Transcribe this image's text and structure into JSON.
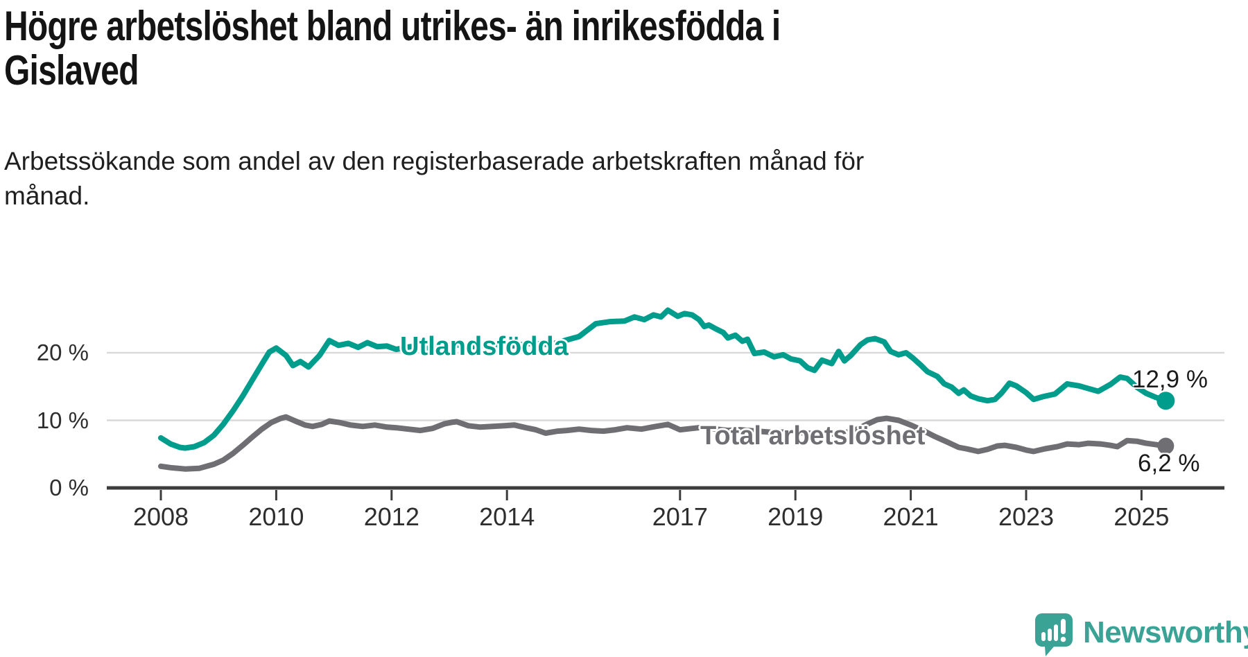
{
  "title": "Högre arbetslöshet bland utrikes- än inrikesfödda i\nGislaved",
  "subtitle": "Arbetssökande som andel av den registerbaserade arbetskraften månad för\nmånad.",
  "footer": {
    "brand": "Newsworthy",
    "logo_icon": "newsworthy-speech-bubble-bar-chart-icon"
  },
  "colors": {
    "series_foreign_born": "#009c8c",
    "series_total": "#6e6e73",
    "gridline": "#d9d9d9",
    "axis": "#3c3c3c",
    "tick_text": "#2e2e2e",
    "heading_text": "#141414",
    "value_label_text": "#1a1a1a",
    "logo_teal": "#3aa396"
  },
  "chart_data": {
    "type": "line",
    "title": "Högre arbetslöshet bland utrikes- än inrikesfödda i Gislaved",
    "subtitle": "Arbetssökande som andel av den registerbaserade arbetskraften månad för månad.",
    "x_axis": {
      "unit": "year",
      "ticks": [
        2008,
        2010,
        2012,
        2014,
        2017,
        2019,
        2021,
        2023,
        2025
      ],
      "range": [
        2008,
        2025.9
      ]
    },
    "y_axis": {
      "unit": "%",
      "ticks": [
        0,
        10,
        20
      ],
      "tick_labels": [
        "0 %",
        "10 %",
        "20 %"
      ],
      "gridlines": [
        10,
        20
      ],
      "range": [
        0,
        33
      ]
    },
    "legend_position": "inline-on-line",
    "grid": "horizontal-only",
    "series": [
      {
        "id": "utlandsfodda",
        "name": "Utlandsfödda",
        "color": "#009c8c",
        "end_value": 12.9,
        "end_label": "12,9 %",
        "points": [
          [
            2008.0,
            7.4
          ],
          [
            2008.17,
            6.5
          ],
          [
            2008.33,
            6.0
          ],
          [
            2008.42,
            5.9
          ],
          [
            2008.58,
            6.1
          ],
          [
            2008.75,
            6.7
          ],
          [
            2008.92,
            7.8
          ],
          [
            2009.08,
            9.4
          ],
          [
            2009.25,
            11.4
          ],
          [
            2009.42,
            13.6
          ],
          [
            2009.58,
            15.9
          ],
          [
            2009.75,
            18.3
          ],
          [
            2009.88,
            20.1
          ],
          [
            2010.0,
            20.7
          ],
          [
            2010.17,
            19.6
          ],
          [
            2010.29,
            18.1
          ],
          [
            2010.42,
            18.7
          ],
          [
            2010.56,
            17.9
          ],
          [
            2010.75,
            19.6
          ],
          [
            2010.92,
            21.8
          ],
          [
            2011.08,
            21.1
          ],
          [
            2011.25,
            21.4
          ],
          [
            2011.42,
            20.8
          ],
          [
            2011.58,
            21.5
          ],
          [
            2011.75,
            20.9
          ],
          [
            2011.92,
            21.0
          ],
          [
            2012.08,
            20.5
          ],
          [
            2012.33,
            20.9
          ],
          [
            2012.58,
            20.6
          ],
          [
            2012.83,
            20.8
          ],
          [
            2013.08,
            21.2
          ],
          [
            2013.42,
            20.9
          ],
          [
            2013.75,
            21.3
          ],
          [
            2014.08,
            21.0
          ],
          [
            2014.42,
            21.4
          ],
          [
            2014.75,
            21.2
          ],
          [
            2015.0,
            21.8
          ],
          [
            2015.25,
            22.4
          ],
          [
            2015.54,
            24.3
          ],
          [
            2015.79,
            24.6
          ],
          [
            2016.04,
            24.7
          ],
          [
            2016.21,
            25.3
          ],
          [
            2016.38,
            24.9
          ],
          [
            2016.54,
            25.6
          ],
          [
            2016.67,
            25.3
          ],
          [
            2016.79,
            26.3
          ],
          [
            2016.96,
            25.4
          ],
          [
            2017.08,
            25.8
          ],
          [
            2017.21,
            25.6
          ],
          [
            2017.33,
            24.9
          ],
          [
            2017.42,
            23.9
          ],
          [
            2017.5,
            24.1
          ],
          [
            2017.63,
            23.5
          ],
          [
            2017.75,
            23.0
          ],
          [
            2017.83,
            22.2
          ],
          [
            2017.96,
            22.6
          ],
          [
            2018.08,
            21.7
          ],
          [
            2018.17,
            22.0
          ],
          [
            2018.29,
            19.9
          ],
          [
            2018.46,
            20.1
          ],
          [
            2018.63,
            19.4
          ],
          [
            2018.79,
            19.7
          ],
          [
            2018.92,
            19.1
          ],
          [
            2019.08,
            18.8
          ],
          [
            2019.21,
            17.8
          ],
          [
            2019.33,
            17.4
          ],
          [
            2019.46,
            18.9
          ],
          [
            2019.63,
            18.4
          ],
          [
            2019.75,
            20.2
          ],
          [
            2019.85,
            18.8
          ],
          [
            2019.96,
            19.6
          ],
          [
            2020.13,
            21.2
          ],
          [
            2020.25,
            21.9
          ],
          [
            2020.38,
            22.1
          ],
          [
            2020.54,
            21.6
          ],
          [
            2020.65,
            20.2
          ],
          [
            2020.79,
            19.7
          ],
          [
            2020.92,
            20.0
          ],
          [
            2021.04,
            19.2
          ],
          [
            2021.17,
            18.2
          ],
          [
            2021.29,
            17.2
          ],
          [
            2021.46,
            16.5
          ],
          [
            2021.58,
            15.4
          ],
          [
            2021.71,
            14.9
          ],
          [
            2021.83,
            14.0
          ],
          [
            2021.92,
            14.5
          ],
          [
            2022.04,
            13.6
          ],
          [
            2022.17,
            13.2
          ],
          [
            2022.33,
            12.9
          ],
          [
            2022.46,
            13.1
          ],
          [
            2022.58,
            14.1
          ],
          [
            2022.71,
            15.5
          ],
          [
            2022.83,
            15.1
          ],
          [
            2023.0,
            14.1
          ],
          [
            2023.13,
            13.1
          ],
          [
            2023.29,
            13.5
          ],
          [
            2023.5,
            13.9
          ],
          [
            2023.71,
            15.4
          ],
          [
            2023.92,
            15.1
          ],
          [
            2024.08,
            14.7
          ],
          [
            2024.25,
            14.3
          ],
          [
            2024.46,
            15.3
          ],
          [
            2024.63,
            16.4
          ],
          [
            2024.75,
            16.2
          ],
          [
            2024.92,
            14.9
          ],
          [
            2025.08,
            14.0
          ],
          [
            2025.25,
            13.4
          ],
          [
            2025.42,
            12.9
          ]
        ]
      },
      {
        "id": "total",
        "name": "Total arbetslöshet",
        "color": "#6e6e73",
        "end_value": 6.2,
        "end_label": "6,2 %",
        "points": [
          [
            2008.0,
            3.2
          ],
          [
            2008.17,
            3.0
          ],
          [
            2008.42,
            2.8
          ],
          [
            2008.67,
            2.9
          ],
          [
            2008.92,
            3.5
          ],
          [
            2009.08,
            4.1
          ],
          [
            2009.25,
            5.1
          ],
          [
            2009.42,
            6.3
          ],
          [
            2009.58,
            7.5
          ],
          [
            2009.75,
            8.7
          ],
          [
            2009.92,
            9.7
          ],
          [
            2010.08,
            10.3
          ],
          [
            2010.17,
            10.5
          ],
          [
            2010.33,
            9.9
          ],
          [
            2010.5,
            9.3
          ],
          [
            2010.63,
            9.1
          ],
          [
            2010.79,
            9.4
          ],
          [
            2010.92,
            9.9
          ],
          [
            2011.08,
            9.7
          ],
          [
            2011.29,
            9.3
          ],
          [
            2011.5,
            9.1
          ],
          [
            2011.71,
            9.3
          ],
          [
            2011.92,
            9.0
          ],
          [
            2012.08,
            8.9
          ],
          [
            2012.29,
            8.7
          ],
          [
            2012.5,
            8.5
          ],
          [
            2012.71,
            8.8
          ],
          [
            2012.92,
            9.5
          ],
          [
            2013.04,
            9.7
          ],
          [
            2013.13,
            9.8
          ],
          [
            2013.33,
            9.2
          ],
          [
            2013.54,
            9.0
          ],
          [
            2013.75,
            9.1
          ],
          [
            2013.96,
            9.2
          ],
          [
            2014.13,
            9.3
          ],
          [
            2014.33,
            8.9
          ],
          [
            2014.5,
            8.6
          ],
          [
            2014.67,
            8.1
          ],
          [
            2014.88,
            8.4
          ],
          [
            2015.04,
            8.5
          ],
          [
            2015.25,
            8.7
          ],
          [
            2015.46,
            8.5
          ],
          [
            2015.67,
            8.4
          ],
          [
            2015.88,
            8.6
          ],
          [
            2016.08,
            8.9
          ],
          [
            2016.33,
            8.7
          ],
          [
            2016.58,
            9.1
          ],
          [
            2016.79,
            9.4
          ],
          [
            2017.0,
            8.6
          ],
          [
            2017.21,
            8.8
          ],
          [
            2017.42,
            9.0
          ],
          [
            2017.63,
            8.7
          ],
          [
            2017.83,
            8.5
          ],
          [
            2018.04,
            8.6
          ],
          [
            2018.33,
            8.4
          ],
          [
            2018.63,
            8.2
          ],
          [
            2018.92,
            8.3
          ],
          [
            2019.21,
            8.1
          ],
          [
            2019.5,
            7.9
          ],
          [
            2019.79,
            8.1
          ],
          [
            2020.0,
            8.4
          ],
          [
            2020.21,
            9.3
          ],
          [
            2020.42,
            10.1
          ],
          [
            2020.58,
            10.3
          ],
          [
            2020.79,
            10.0
          ],
          [
            2021.0,
            9.3
          ],
          [
            2021.21,
            8.5
          ],
          [
            2021.42,
            7.6
          ],
          [
            2021.63,
            6.8
          ],
          [
            2021.83,
            6.0
          ],
          [
            2021.96,
            5.8
          ],
          [
            2022.17,
            5.4
          ],
          [
            2022.33,
            5.7
          ],
          [
            2022.5,
            6.2
          ],
          [
            2022.63,
            6.3
          ],
          [
            2022.83,
            6.0
          ],
          [
            2023.0,
            5.6
          ],
          [
            2023.13,
            5.4
          ],
          [
            2023.33,
            5.8
          ],
          [
            2023.54,
            6.1
          ],
          [
            2023.71,
            6.5
          ],
          [
            2023.92,
            6.4
          ],
          [
            2024.08,
            6.6
          ],
          [
            2024.29,
            6.5
          ],
          [
            2024.46,
            6.3
          ],
          [
            2024.58,
            6.1
          ],
          [
            2024.75,
            7.0
          ],
          [
            2024.92,
            6.9
          ],
          [
            2025.08,
            6.6
          ],
          [
            2025.25,
            6.4
          ],
          [
            2025.42,
            6.2
          ]
        ]
      }
    ]
  }
}
